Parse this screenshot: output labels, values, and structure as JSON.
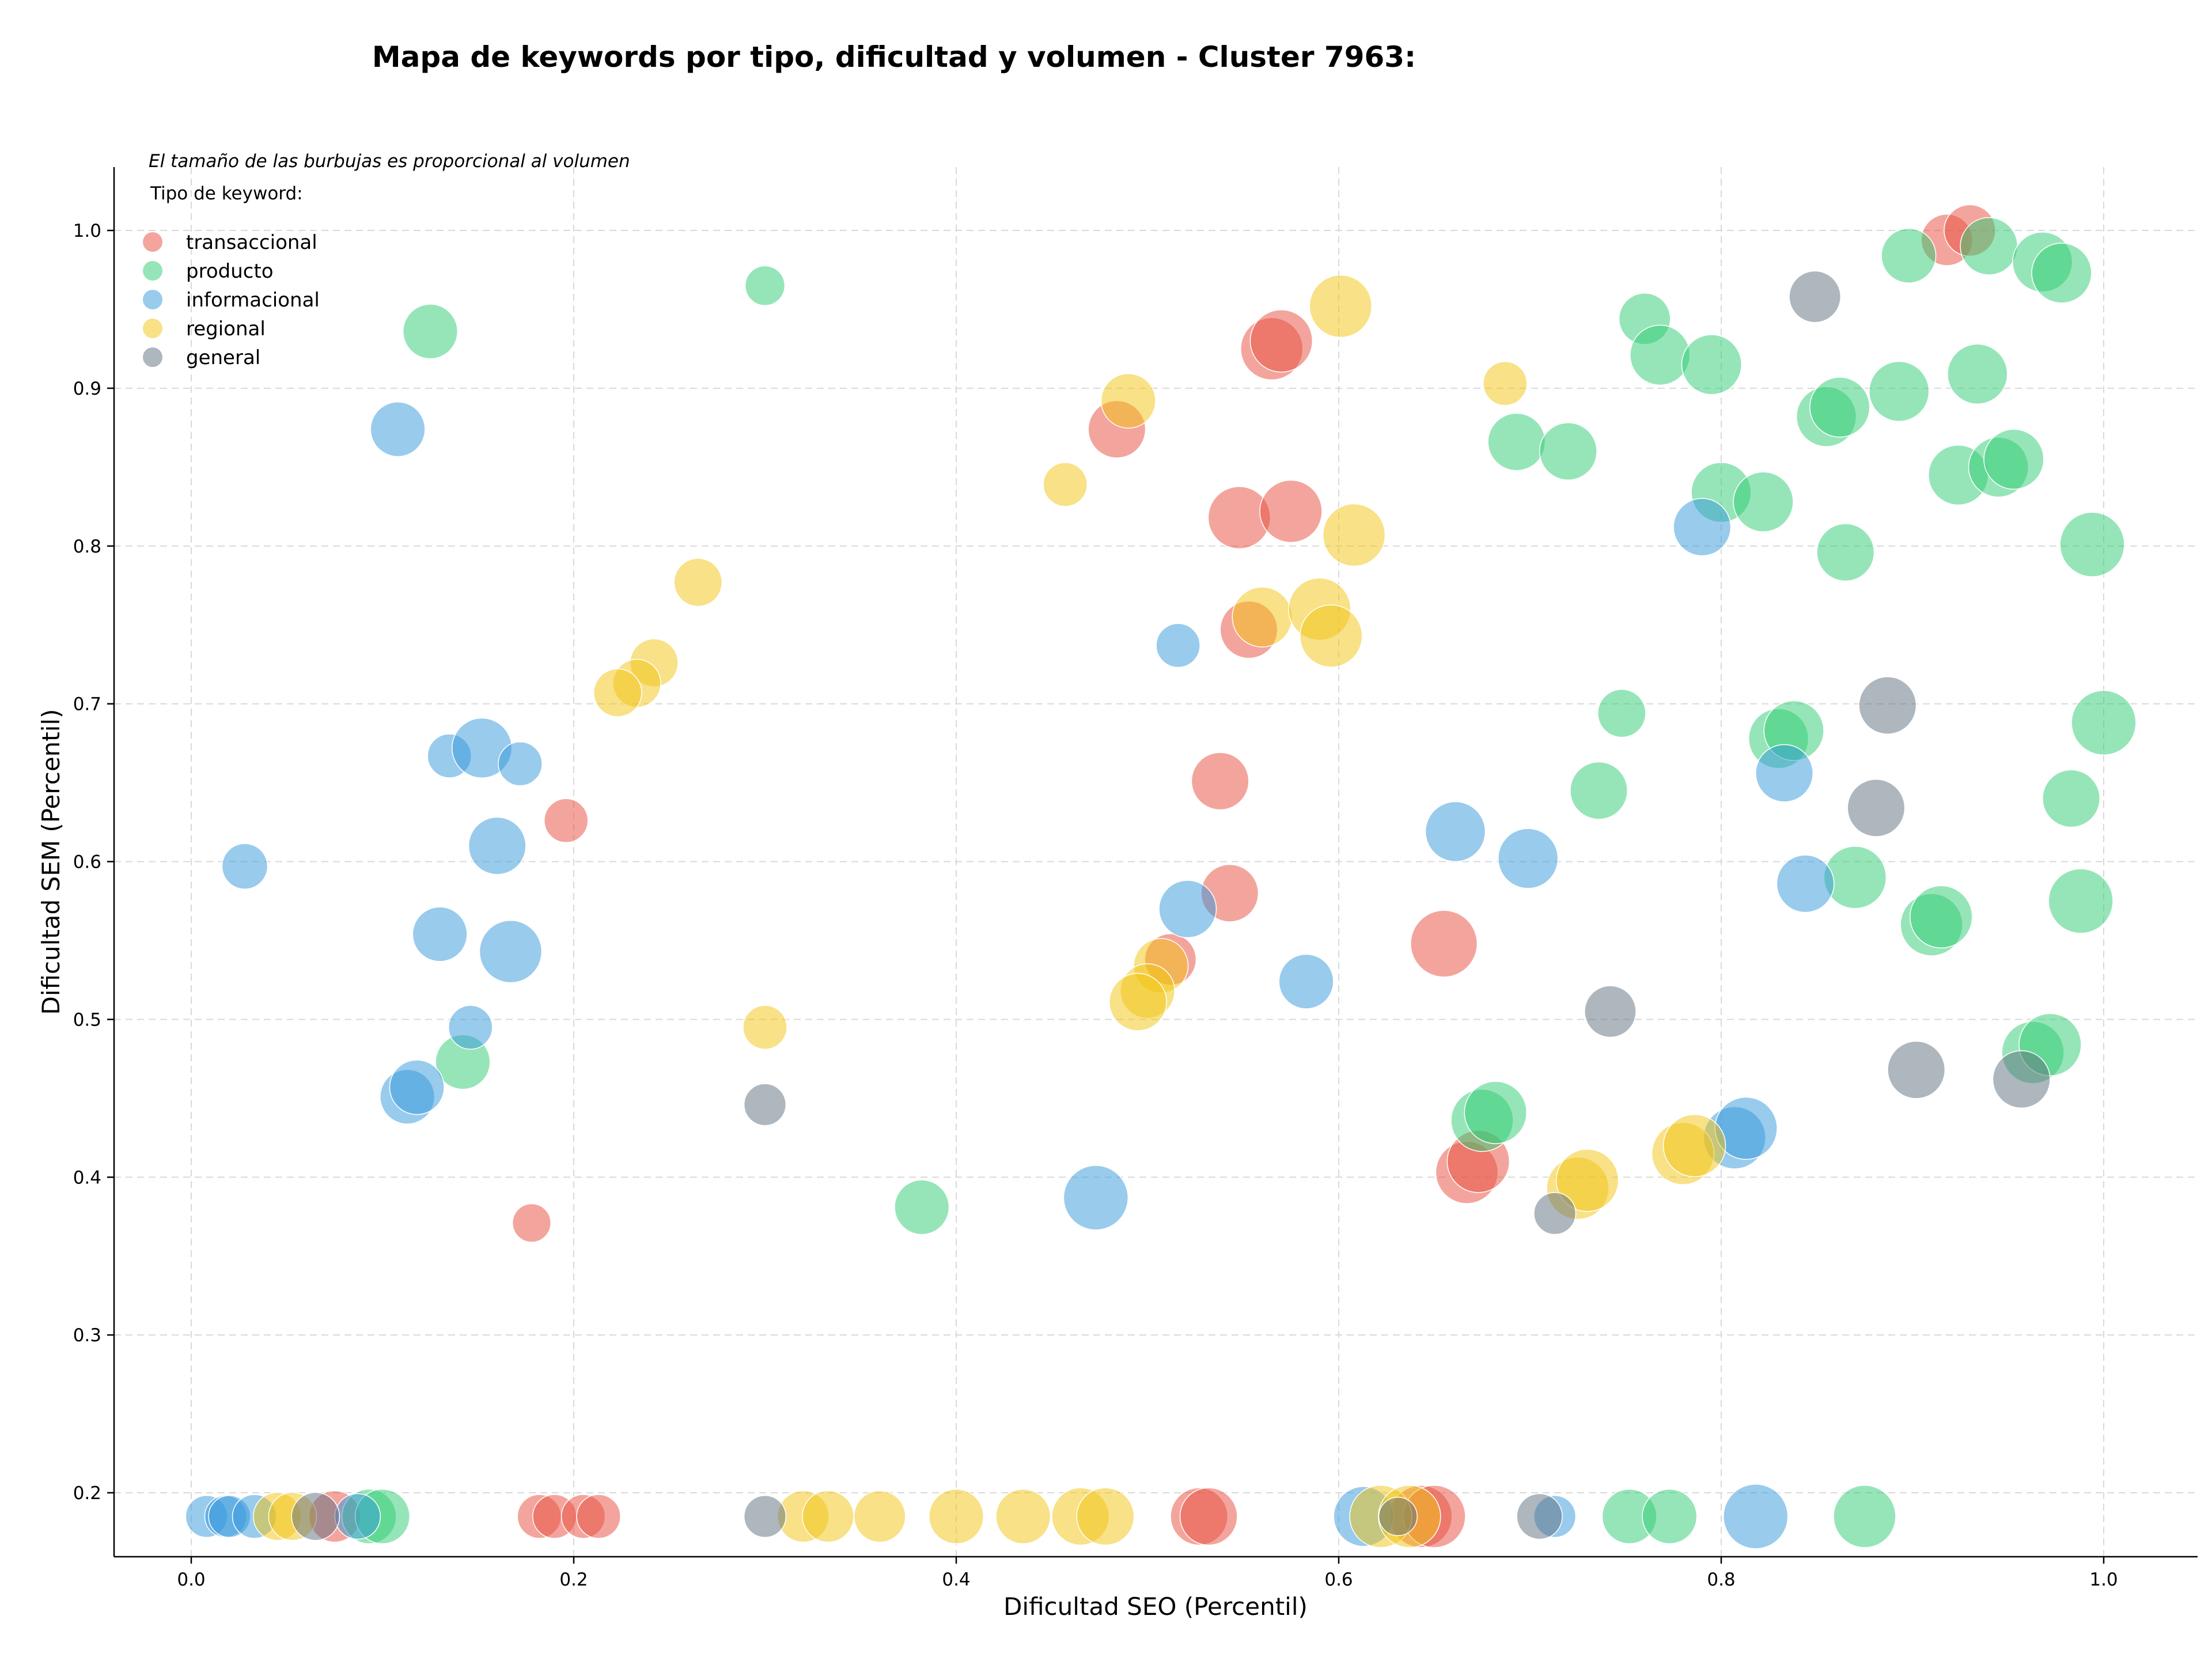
{
  "chart_data": {
    "type": "scatter",
    "title": "Mapa de keywords por tipo, dificultad y volumen - Cluster 7963:",
    "xlabel": "Dificultad SEO (Percentil)",
    "ylabel": "Dificultad SEM (Percentil)",
    "note": "El tamaño de las burbujas es proporcional al volumen",
    "legend_title": "Tipo de keyword:",
    "legend_position": "top-left",
    "xlim": [
      -0.04,
      1.05
    ],
    "ylim": [
      0.145,
      1.04
    ],
    "x_ticks": [
      {
        "v": 0.0,
        "label": "0.0"
      },
      {
        "v": 0.2,
        "label": "0.2"
      },
      {
        "v": 0.4,
        "label": "0.4"
      },
      {
        "v": 0.6,
        "label": "0.6"
      },
      {
        "v": 0.8,
        "label": "0.8"
      },
      {
        "v": 1.0,
        "label": "1.0"
      }
    ],
    "y_ticks": [
      {
        "v": 0.2,
        "label": "0.2"
      },
      {
        "v": 0.3,
        "label": "0.3"
      },
      {
        "v": 0.4,
        "label": "0.4"
      },
      {
        "v": 0.5,
        "label": "0.5"
      },
      {
        "v": 0.6,
        "label": "0.6"
      },
      {
        "v": 0.7,
        "label": "0.7"
      },
      {
        "v": 0.8,
        "label": "0.8"
      },
      {
        "v": 0.9,
        "label": "0.9"
      },
      {
        "v": 1.0,
        "label": "1.0"
      }
    ],
    "grid": true,
    "series": [
      {
        "name": "transaccional",
        "color": "#e74c3c",
        "points": [
          {
            "x": 0.918,
            "y": 0.994,
            "s": 2
          },
          {
            "x": 0.93,
            "y": 1.0,
            "s": 2
          },
          {
            "x": 0.565,
            "y": 0.925,
            "s": 4
          },
          {
            "x": 0.57,
            "y": 0.93,
            "s": 4
          },
          {
            "x": 0.484,
            "y": 0.874,
            "s": 3
          },
          {
            "x": 0.548,
            "y": 0.818,
            "s": 4
          },
          {
            "x": 0.575,
            "y": 0.822,
            "s": 4
          },
          {
            "x": 0.553,
            "y": 0.747,
            "s": 3
          },
          {
            "x": 0.538,
            "y": 0.651,
            "s": 3
          },
          {
            "x": 0.543,
            "y": 0.58,
            "s": 3
          },
          {
            "x": 0.512,
            "y": 0.538,
            "s": 2
          },
          {
            "x": 0.196,
            "y": 0.626,
            "s": 1
          },
          {
            "x": 0.178,
            "y": 0.371,
            "s": 0.5
          },
          {
            "x": 0.655,
            "y": 0.548,
            "s": 5
          },
          {
            "x": 0.667,
            "y": 0.403,
            "s": 4
          },
          {
            "x": 0.673,
            "y": 0.41,
            "s": 4
          },
          {
            "x": 0.075,
            "y": 0.185,
            "s": 2
          },
          {
            "x": 0.182,
            "y": 0.185,
            "s": 1
          },
          {
            "x": 0.19,
            "y": 0.185,
            "s": 1
          },
          {
            "x": 0.205,
            "y": 0.185,
            "s": 1
          },
          {
            "x": 0.213,
            "y": 0.185,
            "s": 1
          },
          {
            "x": 0.527,
            "y": 0.185,
            "s": 3
          },
          {
            "x": 0.532,
            "y": 0.185,
            "s": 3
          },
          {
            "x": 0.643,
            "y": 0.185,
            "s": 4
          },
          {
            "x": 0.65,
            "y": 0.185,
            "s": 4
          }
        ]
      },
      {
        "name": "producto",
        "color": "#2ecc71",
        "points": [
          {
            "x": 0.125,
            "y": 0.936,
            "s": 2.5
          },
          {
            "x": 0.3,
            "y": 0.965,
            "s": 0.6
          },
          {
            "x": 0.898,
            "y": 0.984,
            "s": 2.5
          },
          {
            "x": 0.94,
            "y": 0.99,
            "s": 3
          },
          {
            "x": 0.968,
            "y": 0.98,
            "s": 3.5
          },
          {
            "x": 0.978,
            "y": 0.973,
            "s": 3.5
          },
          {
            "x": 0.76,
            "y": 0.944,
            "s": 2
          },
          {
            "x": 0.768,
            "y": 0.921,
            "s": 3.5
          },
          {
            "x": 0.795,
            "y": 0.915,
            "s": 3.5
          },
          {
            "x": 0.693,
            "y": 0.866,
            "s": 3
          },
          {
            "x": 0.72,
            "y": 0.86,
            "s": 3
          },
          {
            "x": 0.855,
            "y": 0.882,
            "s": 3.5
          },
          {
            "x": 0.862,
            "y": 0.888,
            "s": 3.5
          },
          {
            "x": 0.893,
            "y": 0.898,
            "s": 3.5
          },
          {
            "x": 0.934,
            "y": 0.909,
            "s": 3.5
          },
          {
            "x": 0.8,
            "y": 0.834,
            "s": 3.5
          },
          {
            "x": 0.822,
            "y": 0.828,
            "s": 3.5
          },
          {
            "x": 0.924,
            "y": 0.845,
            "s": 3.5
          },
          {
            "x": 0.945,
            "y": 0.85,
            "s": 3.5
          },
          {
            "x": 0.953,
            "y": 0.855,
            "s": 3.5
          },
          {
            "x": 0.865,
            "y": 0.796,
            "s": 3
          },
          {
            "x": 0.994,
            "y": 0.801,
            "s": 4.5
          },
          {
            "x": 0.748,
            "y": 0.694,
            "s": 1.5
          },
          {
            "x": 0.83,
            "y": 0.678,
            "s": 3.5
          },
          {
            "x": 0.838,
            "y": 0.683,
            "s": 3.5
          },
          {
            "x": 1.0,
            "y": 0.688,
            "s": 4.5
          },
          {
            "x": 0.736,
            "y": 0.645,
            "s": 3
          },
          {
            "x": 0.983,
            "y": 0.64,
            "s": 3
          },
          {
            "x": 0.87,
            "y": 0.59,
            "s": 4
          },
          {
            "x": 0.91,
            "y": 0.56,
            "s": 4
          },
          {
            "x": 0.915,
            "y": 0.565,
            "s": 4
          },
          {
            "x": 0.988,
            "y": 0.575,
            "s": 4.5
          },
          {
            "x": 0.142,
            "y": 0.473,
            "s": 2.5
          },
          {
            "x": 0.382,
            "y": 0.381,
            "s": 2.5
          },
          {
            "x": 0.675,
            "y": 0.436,
            "s": 4
          },
          {
            "x": 0.682,
            "y": 0.441,
            "s": 4
          },
          {
            "x": 0.963,
            "y": 0.479,
            "s": 4
          },
          {
            "x": 0.972,
            "y": 0.484,
            "s": 4
          },
          {
            "x": 0.093,
            "y": 0.185,
            "s": 2.5
          },
          {
            "x": 0.1,
            "y": 0.185,
            "s": 2.5
          },
          {
            "x": 0.752,
            "y": 0.185,
            "s": 2.5
          },
          {
            "x": 0.773,
            "y": 0.185,
            "s": 2.5
          },
          {
            "x": 0.875,
            "y": 0.185,
            "s": 4
          }
        ]
      },
      {
        "name": "informacional",
        "color": "#3498db",
        "points": [
          {
            "x": 0.108,
            "y": 0.874,
            "s": 2.5
          },
          {
            "x": 0.028,
            "y": 0.597,
            "s": 1.2
          },
          {
            "x": 0.135,
            "y": 0.667,
            "s": 1
          },
          {
            "x": 0.152,
            "y": 0.672,
            "s": 3.5
          },
          {
            "x": 0.172,
            "y": 0.662,
            "s": 1
          },
          {
            "x": 0.16,
            "y": 0.61,
            "s": 3
          },
          {
            "x": 0.13,
            "y": 0.554,
            "s": 2.5
          },
          {
            "x": 0.167,
            "y": 0.543,
            "s": 4
          },
          {
            "x": 0.146,
            "y": 0.495,
            "s": 1
          },
          {
            "x": 0.113,
            "y": 0.451,
            "s": 2.5
          },
          {
            "x": 0.118,
            "y": 0.457,
            "s": 2.5
          },
          {
            "x": 0.516,
            "y": 0.737,
            "s": 1
          },
          {
            "x": 0.521,
            "y": 0.57,
            "s": 3
          },
          {
            "x": 0.583,
            "y": 0.524,
            "s": 2.5
          },
          {
            "x": 0.473,
            "y": 0.387,
            "s": 4.5
          },
          {
            "x": 0.661,
            "y": 0.619,
            "s": 3.5
          },
          {
            "x": 0.699,
            "y": 0.602,
            "s": 3.5
          },
          {
            "x": 0.79,
            "y": 0.812,
            "s": 3
          },
          {
            "x": 0.833,
            "y": 0.656,
            "s": 3
          },
          {
            "x": 0.844,
            "y": 0.586,
            "s": 3
          },
          {
            "x": 0.807,
            "y": 0.425,
            "s": 4
          },
          {
            "x": 0.813,
            "y": 0.431,
            "s": 4
          },
          {
            "x": 0.008,
            "y": 0.185,
            "s": 0.8
          },
          {
            "x": 0.018,
            "y": 0.185,
            "s": 0.8
          },
          {
            "x": 0.02,
            "y": 0.185,
            "s": 0.8
          },
          {
            "x": 0.033,
            "y": 0.185,
            "s": 1
          },
          {
            "x": 0.087,
            "y": 0.185,
            "s": 1.2
          },
          {
            "x": 0.613,
            "y": 0.185,
            "s": 3.5
          },
          {
            "x": 0.713,
            "y": 0.185,
            "s": 0.8
          },
          {
            "x": 0.818,
            "y": 0.185,
            "s": 4.5
          }
        ]
      },
      {
        "name": "regional",
        "color": "#f1c40f",
        "points": [
          {
            "x": 0.601,
            "y": 0.952,
            "s": 4
          },
          {
            "x": 0.49,
            "y": 0.892,
            "s": 2.5
          },
          {
            "x": 0.687,
            "y": 0.903,
            "s": 1
          },
          {
            "x": 0.457,
            "y": 0.839,
            "s": 1
          },
          {
            "x": 0.608,
            "y": 0.807,
            "s": 4
          },
          {
            "x": 0.265,
            "y": 0.777,
            "s": 1.5
          },
          {
            "x": 0.242,
            "y": 0.726,
            "s": 1.5
          },
          {
            "x": 0.233,
            "y": 0.713,
            "s": 1.5
          },
          {
            "x": 0.223,
            "y": 0.707,
            "s": 1.5
          },
          {
            "x": 0.56,
            "y": 0.755,
            "s": 3.5
          },
          {
            "x": 0.59,
            "y": 0.76,
            "s": 4
          },
          {
            "x": 0.596,
            "y": 0.743,
            "s": 4
          },
          {
            "x": 0.507,
            "y": 0.534,
            "s": 2.5
          },
          {
            "x": 0.5,
            "y": 0.518,
            "s": 2.5
          },
          {
            "x": 0.495,
            "y": 0.511,
            "s": 3
          },
          {
            "x": 0.3,
            "y": 0.495,
            "s": 1
          },
          {
            "x": 0.725,
            "y": 0.393,
            "s": 4
          },
          {
            "x": 0.73,
            "y": 0.398,
            "s": 4
          },
          {
            "x": 0.78,
            "y": 0.415,
            "s": 4
          },
          {
            "x": 0.786,
            "y": 0.42,
            "s": 4
          },
          {
            "x": 0.045,
            "y": 0.185,
            "s": 1.5
          },
          {
            "x": 0.053,
            "y": 0.185,
            "s": 1.5
          },
          {
            "x": 0.32,
            "y": 0.185,
            "s": 2
          },
          {
            "x": 0.333,
            "y": 0.185,
            "s": 2
          },
          {
            "x": 0.36,
            "y": 0.185,
            "s": 2
          },
          {
            "x": 0.4,
            "y": 0.185,
            "s": 2.5
          },
          {
            "x": 0.435,
            "y": 0.185,
            "s": 2.5
          },
          {
            "x": 0.465,
            "y": 0.185,
            "s": 3
          },
          {
            "x": 0.478,
            "y": 0.185,
            "s": 3
          },
          {
            "x": 0.622,
            "y": 0.185,
            "s": 4
          },
          {
            "x": 0.637,
            "y": 0.185,
            "s": 4
          }
        ]
      },
      {
        "name": "general",
        "color": "#5d6d7e",
        "points": [
          {
            "x": 0.849,
            "y": 0.958,
            "s": 2
          },
          {
            "x": 0.887,
            "y": 0.699,
            "s": 3
          },
          {
            "x": 0.881,
            "y": 0.634,
            "s": 3
          },
          {
            "x": 0.742,
            "y": 0.505,
            "s": 2
          },
          {
            "x": 0.902,
            "y": 0.468,
            "s": 3
          },
          {
            "x": 0.957,
            "y": 0.462,
            "s": 3
          },
          {
            "x": 0.3,
            "y": 0.446,
            "s": 0.8
          },
          {
            "x": 0.713,
            "y": 0.377,
            "s": 0.8
          },
          {
            "x": 0.065,
            "y": 0.185,
            "s": 1.5
          },
          {
            "x": 0.3,
            "y": 0.185,
            "s": 0.8
          },
          {
            "x": 0.631,
            "y": 0.185,
            "s": 0.5
          },
          {
            "x": 0.705,
            "y": 0.185,
            "s": 1.2
          }
        ]
      }
    ]
  }
}
